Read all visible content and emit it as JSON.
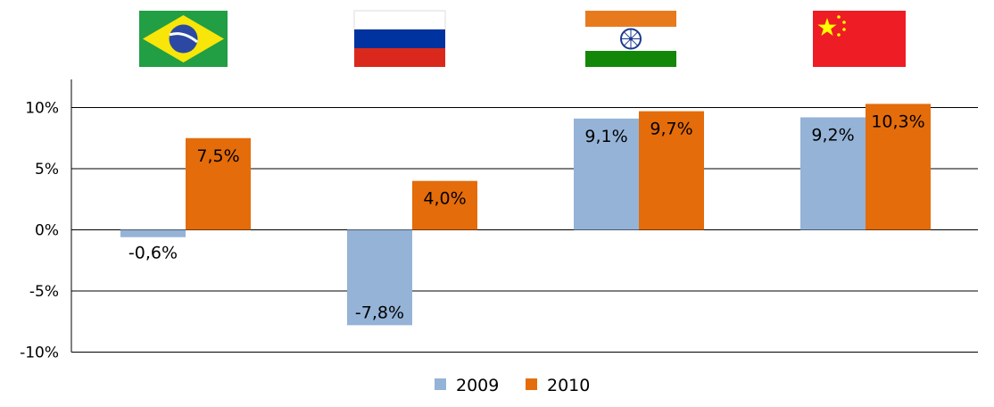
{
  "colors": {
    "series_2009": "#95B3D7",
    "series_2010": "#E46C0A",
    "gridline": "#000000",
    "background": "#FFFFFF"
  },
  "flags": [
    {
      "country": "Brazil",
      "icon": "flag-brazil-icon"
    },
    {
      "country": "Russia",
      "icon": "flag-russia-icon"
    },
    {
      "country": "India",
      "icon": "flag-india-icon"
    },
    {
      "country": "China",
      "icon": "flag-china-icon"
    }
  ],
  "chart_data": {
    "type": "bar",
    "title": "",
    "xlabel": "",
    "ylabel": "",
    "categories": [
      "Brazil",
      "Russia",
      "India",
      "China"
    ],
    "ylim": [
      -10,
      12.5
    ],
    "yticks": [
      10,
      5,
      0,
      -5,
      -10
    ],
    "ytick_labels": [
      "10%",
      "5%",
      "0%",
      "-5%",
      "-10%"
    ],
    "grid": true,
    "legend": "bottom",
    "series": [
      {
        "name": "2009",
        "values": [
          -0.6,
          -7.8,
          9.1,
          9.2
        ],
        "labels": [
          "-0,6%",
          "-7,8%",
          "9,1%",
          "9,2%"
        ]
      },
      {
        "name": "2010",
        "values": [
          7.5,
          4.0,
          9.7,
          10.3
        ],
        "labels": [
          "7,5%",
          "4,0%",
          "9,7%",
          "10,3%"
        ]
      }
    ]
  }
}
